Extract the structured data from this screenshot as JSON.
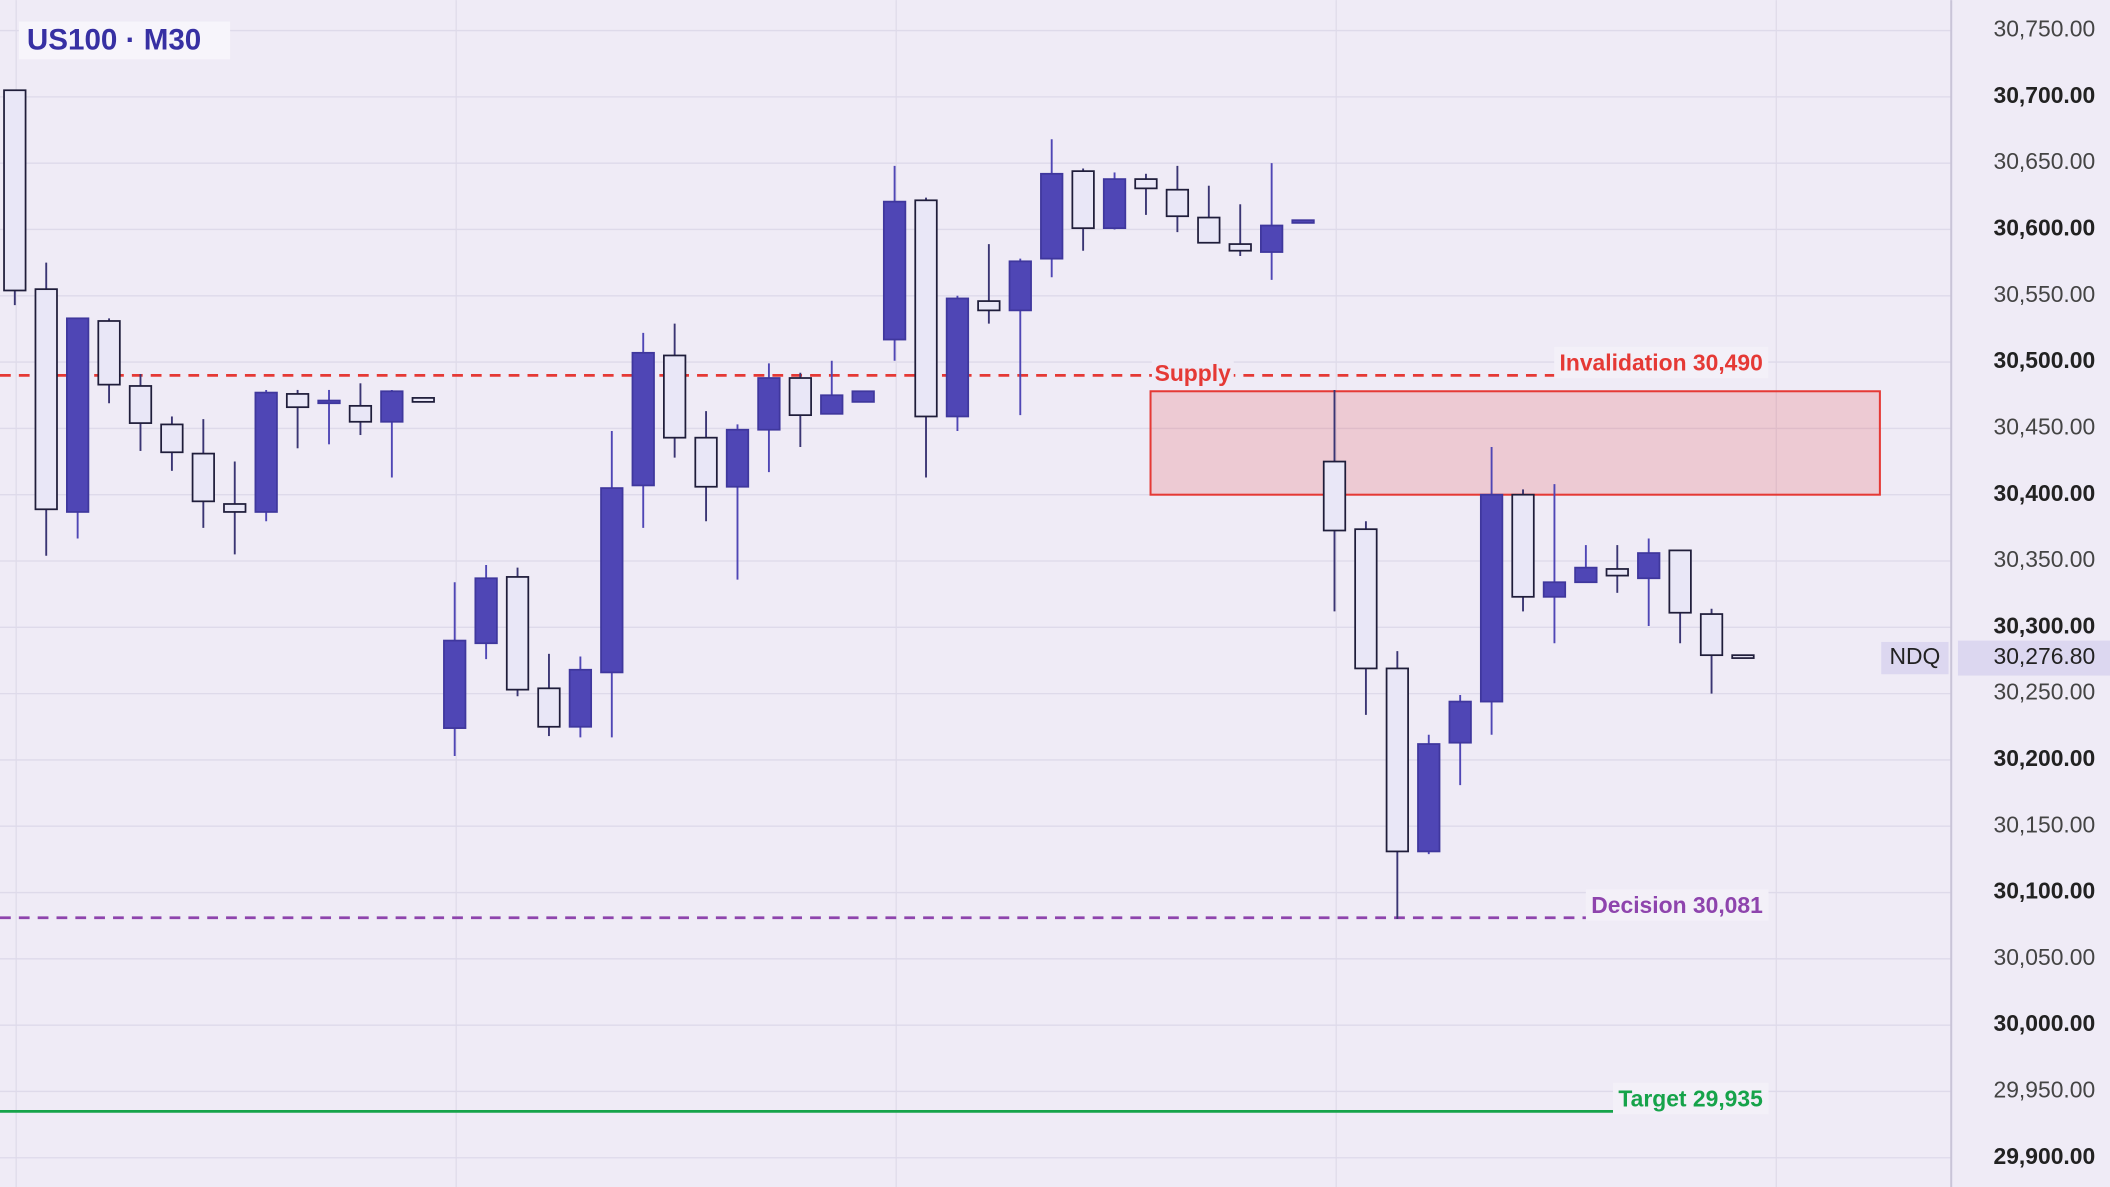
{
  "chart_data": {
    "type": "candlestick",
    "title": "US100 · M30",
    "ylim": [
      29878,
      30773
    ],
    "yticks": [
      {
        "value": 29900,
        "label": "29,900.00"
      },
      {
        "value": 29950,
        "label": "29,950.00"
      },
      {
        "value": 30000,
        "label": "30,000.00"
      },
      {
        "value": 30050,
        "label": "30,050.00"
      },
      {
        "value": 30100,
        "label": "30,100.00"
      },
      {
        "value": 30150,
        "label": "30,150.00"
      },
      {
        "value": 30200,
        "label": "30,200.00"
      },
      {
        "value": 30250,
        "label": "30,250.00"
      },
      {
        "value": 30300,
        "label": "30,300.00"
      },
      {
        "value": 30350,
        "label": "30,350.00"
      },
      {
        "value": 30400,
        "label": "30,400.00"
      },
      {
        "value": 30450,
        "label": "30,450.00"
      },
      {
        "value": 30500,
        "label": "30,500.00"
      },
      {
        "value": 30550,
        "label": "30,550.00"
      },
      {
        "value": 30600,
        "label": "30,600.00"
      },
      {
        "value": 30650,
        "label": "30,650.00"
      },
      {
        "value": 30700,
        "label": "30,700.00"
      },
      {
        "value": 30750,
        "label": "30,750.00"
      }
    ],
    "grid": true,
    "up_color": "#4f46b5",
    "down_color": "#e9e7f7",
    "open": [
      30705,
      30555,
      30387,
      30531,
      30482,
      30453,
      30431,
      30393,
      30387,
      30476,
      30470,
      30467,
      30455,
      30473,
      30224,
      30288,
      30338,
      30254,
      30225,
      30266,
      30407,
      30505,
      30443,
      30406,
      30449,
      30488,
      30461,
      30470,
      30517,
      30622,
      30459,
      30546,
      30539,
      30578,
      30644,
      30601,
      30638,
      30630,
      30609,
      30589,
      30583,
      30605,
      30425,
      30374,
      30269,
      30131,
      30213,
      30244,
      30400,
      30323,
      30334,
      30344,
      30337,
      30358,
      30310,
      30279
    ],
    "high": [
      30705,
      30575,
      30533,
      30533,
      30491,
      30459,
      30457,
      30425,
      30479,
      30479,
      30479,
      30484,
      30479,
      30473,
      30334,
      30347,
      30345,
      30280,
      30278,
      30448,
      30522,
      30529,
      30463,
      30453,
      30499,
      30492,
      30501,
      30478,
      30648,
      30624,
      30550,
      30589,
      30578,
      30668,
      30646,
      30643,
      30642,
      30648,
      30633,
      30619,
      30650,
      30607,
      30479,
      30380,
      30282,
      30219,
      30249,
      30436,
      30404,
      30408,
      30362,
      30362,
      30367,
      30358,
      30314,
      30279
    ],
    "low": [
      30543,
      30354,
      30367,
      30469,
      30433,
      30418,
      30375,
      30355,
      30380,
      30435,
      30438,
      30445,
      30413,
      30470,
      30203,
      30276,
      30248,
      30218,
      30217,
      30217,
      30375,
      30428,
      30380,
      30336,
      30417,
      30436,
      30461,
      30470,
      30501,
      30413,
      30448,
      30529,
      30460,
      30564,
      30584,
      30600,
      30611,
      30598,
      30590,
      30580,
      30562,
      30605,
      30312,
      30234,
      30080,
      30129,
      30181,
      30219,
      30312,
      30288,
      30334,
      30326,
      30301,
      30288,
      30250,
      30276.8
    ],
    "close": [
      30554,
      30389,
      30533,
      30483,
      30454,
      30432,
      30395,
      30387,
      30477,
      30466,
      30471,
      30455,
      30478,
      30470,
      30290,
      30337,
      30253,
      30225,
      30268,
      30405,
      30507,
      30443,
      30406,
      30449,
      30488,
      30460,
      30475,
      30478,
      30621,
      30459,
      30548,
      30539,
      30576,
      30642,
      30601,
      30638,
      30631,
      30610,
      30590,
      30584,
      30603,
      30607,
      30373,
      30269,
      30131,
      30212,
      30244,
      30400,
      30323,
      30334,
      30345,
      30339,
      30356,
      30311,
      30279,
      30276.8
    ],
    "zones": [
      {
        "label": "Supply",
        "low": 30400,
        "high": 30478,
        "color": "#e53935"
      }
    ],
    "levels": [
      {
        "label": "Invalidation 30,490",
        "value": 30490,
        "color": "#e53935",
        "style": "dashed"
      },
      {
        "label": "Decision 30,081",
        "value": 30081,
        "color": "#8e44ad",
        "style": "dashed"
      },
      {
        "label": "Target 29,935",
        "value": 29935,
        "color": "#16a34a",
        "style": "solid"
      }
    ],
    "last_price": {
      "symbol": "NDQ",
      "value": 30276.8,
      "label": "30,276.80"
    }
  }
}
